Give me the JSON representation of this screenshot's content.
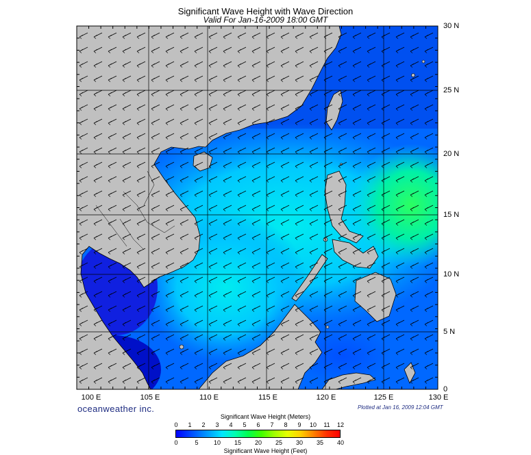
{
  "title": "Significant Wave Height with Wave Direction",
  "subtitle": "Valid For Jan-16-2009 18:00 GMT",
  "longitude_labels": [
    "100 E",
    "105 E",
    "110 E",
    "115 E",
    "120 E",
    "125 E",
    "130 E"
  ],
  "latitude_labels": [
    "30 N",
    "25 N",
    "20 N",
    "15 N",
    "10 N",
    "5 N",
    "0"
  ],
  "brand": "oceanweather inc.",
  "plotted_at": "Plotted at Jan 16, 2009 12:04 GMT",
  "legend": {
    "meters_title": "Significant Wave Height (Meters)",
    "meters_ticks": [
      "0",
      "1",
      "2",
      "3",
      "4",
      "5",
      "6",
      "7",
      "8",
      "9",
      "10",
      "11",
      "12"
    ],
    "feet_title": "Significant Wave Height (Feet)",
    "feet_ticks": [
      "0",
      "5",
      "10",
      "15",
      "20",
      "25",
      "30",
      "35",
      "40"
    ]
  },
  "colors": {
    "land": "#c0c0c0",
    "deep_low": "#0000e0",
    "low": "#0060ff",
    "mid": "#00c8ff",
    "high": "#00ff80",
    "arrow": "#000000"
  },
  "map": {
    "lon_range": [
      100,
      130
    ],
    "lat_range": [
      0,
      30
    ],
    "grid_step_deg": 5,
    "arrow_direction": "from northeast toward southwest"
  }
}
